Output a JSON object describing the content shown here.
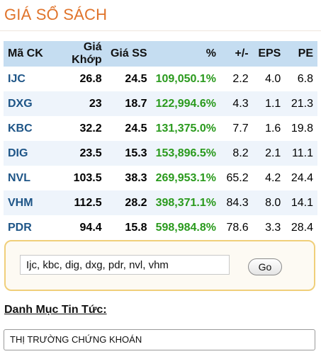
{
  "page": {
    "title": "GIÁ SỔ SÁCH"
  },
  "table": {
    "headers": [
      "Mã CK",
      "Giá Khớp",
      "Giá SS",
      "%",
      "+/-",
      "EPS",
      "PE"
    ],
    "rows": [
      {
        "code": "IJC",
        "match": "26.8",
        "book": "24.5",
        "pct": "109,050.1%",
        "diff": "2.2",
        "eps": "4.0",
        "pe": "6.8"
      },
      {
        "code": "DXG",
        "match": "23",
        "book": "18.7",
        "pct": "122,994.6%",
        "diff": "4.3",
        "eps": "1.1",
        "pe": "21.3"
      },
      {
        "code": "KBC",
        "match": "32.2",
        "book": "24.5",
        "pct": "131,375.0%",
        "diff": "7.7",
        "eps": "1.6",
        "pe": "19.8"
      },
      {
        "code": "DIG",
        "match": "23.5",
        "book": "15.3",
        "pct": "153,896.5%",
        "diff": "8.2",
        "eps": "2.1",
        "pe": "11.1"
      },
      {
        "code": "NVL",
        "match": "103.5",
        "book": "38.3",
        "pct": "269,953.1%",
        "diff": "65.2",
        "eps": "4.2",
        "pe": "24.4"
      },
      {
        "code": "VHM",
        "match": "112.5",
        "book": "28.2",
        "pct": "398,371.1%",
        "diff": "84.3",
        "eps": "8.0",
        "pe": "14.1"
      },
      {
        "code": "PDR",
        "match": "94.4",
        "book": "15.8",
        "pct": "598,984.8%",
        "diff": "78.6",
        "eps": "3.3",
        "pe": "28.4"
      }
    ]
  },
  "search": {
    "value": "Ijc, kbc, dig, dxg, pdr, nvl, vhm",
    "button_label": "Go"
  },
  "news": {
    "heading": "Danh Mục Tin Tức:",
    "category": "THỊ TRƯỜNG CHỨNG KHOÁN"
  },
  "colors": {
    "title": "#e0732a",
    "header_bg": "#c5ddf1",
    "code": "#1e5587",
    "pct": "#2a9a1d",
    "search_border": "#f0cf7a"
  }
}
